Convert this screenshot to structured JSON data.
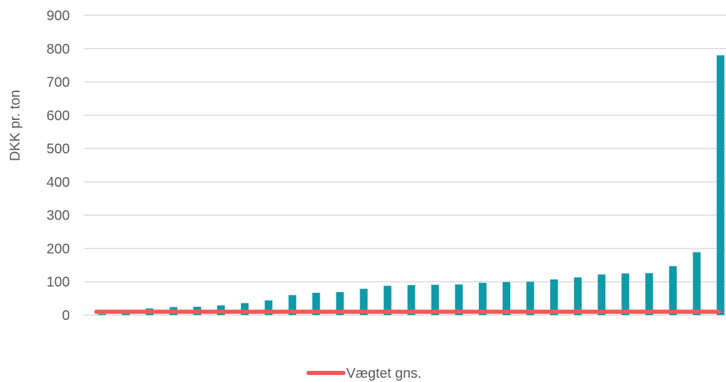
{
  "chart_data": {
    "type": "bar",
    "ylabel": "DKK pr. ton",
    "ylim": [
      0,
      900
    ],
    "yticks": [
      0,
      100,
      200,
      300,
      400,
      500,
      600,
      700,
      800,
      900
    ],
    "grid": true,
    "legend_placement": "bottom",
    "series": [
      {
        "type": "bar",
        "color": "#0e9aa7",
        "values": [
          3,
          4,
          20,
          24,
          25,
          29,
          36,
          44,
          60,
          67,
          69,
          79,
          88,
          90,
          91,
          92,
          97,
          99,
          100,
          107,
          113,
          122,
          125,
          126,
          147,
          189,
          780
        ]
      },
      {
        "name": "Vægtet gns.",
        "type": "line",
        "color": "#f0595a",
        "value": 10
      }
    ]
  }
}
